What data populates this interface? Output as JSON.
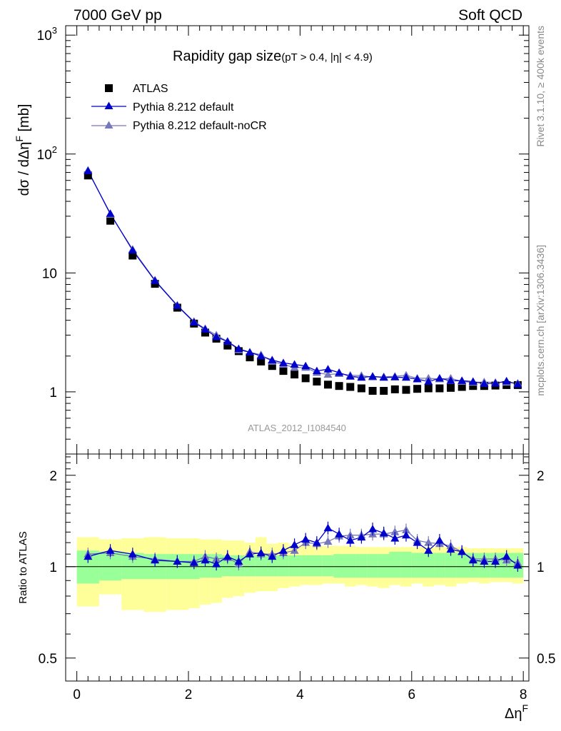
{
  "header": {
    "left": "7000 GeV pp",
    "right": "Soft QCD"
  },
  "side_labels": {
    "rivet": "Rivet 3.1.10, ≥ 400k events",
    "mcplots": "mcplots.cern.ch [arXiv:1306.3436]"
  },
  "analysis_id": "ATLAS_2012_I1084540",
  "colors": {
    "atlas": "#000000",
    "pythia_default": "#0000cc",
    "pythia_nocr": "#7777bb",
    "band_green": "#99ff99",
    "band_yellow": "#ffff99"
  },
  "chart_data": [
    {
      "type": "scatter",
      "panel": "main",
      "title": "Rapidity gap size",
      "subtitle": "(pT > 0.4, |η| < 4.9)",
      "ylabel": "dσ / dΔη^F [mb]",
      "xlabel": "",
      "yscale": "log",
      "xlim": [
        -0.2,
        8.1
      ],
      "ylim": [
        0.3,
        1200
      ],
      "y_ticks": [
        {
          "value": 1,
          "label": "1"
        },
        {
          "value": 10,
          "label": "10"
        },
        {
          "value": 100,
          "label": "10²"
        },
        {
          "value": 1000,
          "label": "10³"
        }
      ],
      "x": [
        0.2,
        0.6,
        1.0,
        1.4,
        1.8,
        2.1,
        2.3,
        2.5,
        2.7,
        2.9,
        3.1,
        3.3,
        3.5,
        3.7,
        3.9,
        4.1,
        4.3,
        4.5,
        4.7,
        4.9,
        5.1,
        5.3,
        5.5,
        5.7,
        5.9,
        6.1,
        6.3,
        6.5,
        6.7,
        6.9,
        7.1,
        7.3,
        7.5,
        7.7,
        7.9
      ],
      "series": [
        {
          "name": "ATLAS",
          "marker": "square",
          "values": [
            66,
            27.5,
            14,
            8.1,
            5.1,
            3.75,
            3.15,
            2.8,
            2.45,
            2.2,
            1.95,
            1.8,
            1.65,
            1.5,
            1.4,
            1.3,
            1.22,
            1.15,
            1.12,
            1.1,
            1.07,
            1.02,
            1.02,
            1.05,
            1.04,
            1.06,
            1.07,
            1.07,
            1.08,
            1.1,
            1.12,
            1.12,
            1.13,
            1.14,
            1.14
          ]
        },
        {
          "name": "Pythia 8.212 default",
          "marker": "triangle",
          "values": [
            72,
            31.5,
            15.5,
            8.6,
            5.3,
            3.85,
            3.35,
            2.9,
            2.65,
            2.3,
            2.15,
            2.0,
            1.85,
            1.75,
            1.7,
            1.65,
            1.5,
            1.55,
            1.45,
            1.35,
            1.32,
            1.35,
            1.32,
            1.33,
            1.32,
            1.28,
            1.22,
            1.3,
            1.24,
            1.24,
            1.22,
            1.17,
            1.18,
            1.23,
            1.16
          ]
        },
        {
          "name": "Pythia 8.212 default-noCR",
          "marker": "triangle",
          "values": [
            73,
            31,
            15.8,
            8.7,
            5.35,
            3.9,
            3.4,
            3.0,
            2.65,
            2.25,
            2.15,
            2.05,
            1.8,
            1.7,
            1.6,
            1.6,
            1.45,
            1.4,
            1.42,
            1.38,
            1.37,
            1.33,
            1.34,
            1.35,
            1.38,
            1.3,
            1.3,
            1.28,
            1.3,
            1.22,
            1.2,
            1.21,
            1.2,
            1.2,
            1.18
          ]
        }
      ]
    },
    {
      "type": "scatter",
      "panel": "ratio",
      "title": "",
      "ylabel": "Ratio to ATLAS",
      "xlabel": "Δη^F",
      "yscale": "log",
      "xlim": [
        -0.2,
        8.1
      ],
      "ylim": [
        0.42,
        2.35
      ],
      "y_ticks": [
        {
          "value": 0.5,
          "label": "0.5"
        },
        {
          "value": 1,
          "label": "1"
        },
        {
          "value": 2,
          "label": "2"
        }
      ],
      "x_ticks": [
        0,
        2,
        4,
        6,
        8
      ],
      "x": [
        0.2,
        0.6,
        1.0,
        1.4,
        1.8,
        2.1,
        2.3,
        2.5,
        2.7,
        2.9,
        3.1,
        3.3,
        3.5,
        3.7,
        3.9,
        4.1,
        4.3,
        4.5,
        4.7,
        4.9,
        5.1,
        5.3,
        5.5,
        5.7,
        5.9,
        6.1,
        6.3,
        6.5,
        6.7,
        6.9,
        7.1,
        7.3,
        7.5,
        7.7,
        7.9
      ],
      "band_edges": [
        0.0,
        0.4,
        0.8,
        1.2,
        1.6,
        2.0,
        2.2,
        2.4,
        2.6,
        2.8,
        3.0,
        3.2,
        3.4,
        3.6,
        3.8,
        4.0,
        4.2,
        4.4,
        4.6,
        4.8,
        5.0,
        5.2,
        5.4,
        5.6,
        5.8,
        6.0,
        6.2,
        6.4,
        6.6,
        6.8,
        7.0,
        7.2,
        7.4,
        7.6,
        7.8,
        8.0
      ],
      "band_green": {
        "low": [
          0.88,
          0.9,
          0.91,
          0.91,
          0.91,
          0.91,
          0.92,
          0.92,
          0.93,
          0.93,
          0.93,
          0.93,
          0.93,
          0.93,
          0.93,
          0.93,
          0.93,
          0.93,
          0.92,
          0.92,
          0.92,
          0.92,
          0.92,
          0.92,
          0.92,
          0.92,
          0.92,
          0.92,
          0.92,
          0.92,
          0.92,
          0.92,
          0.92,
          0.92,
          0.92
        ],
        "high": [
          1.13,
          1.12,
          1.11,
          1.1,
          1.1,
          1.1,
          1.1,
          1.1,
          1.09,
          1.09,
          1.09,
          1.09,
          1.09,
          1.09,
          1.09,
          1.09,
          1.09,
          1.09,
          1.1,
          1.1,
          1.1,
          1.1,
          1.1,
          1.12,
          1.12,
          1.11,
          1.11,
          1.11,
          1.11,
          1.11,
          1.11,
          1.11,
          1.11,
          1.11,
          1.11
        ]
      },
      "band_yellow": {
        "low": [
          0.74,
          0.81,
          0.72,
          0.71,
          0.72,
          0.73,
          0.75,
          0.76,
          0.79,
          0.8,
          0.82,
          0.83,
          0.83,
          0.85,
          0.86,
          0.87,
          0.87,
          0.88,
          0.88,
          0.86,
          0.87,
          0.86,
          0.85,
          0.87,
          0.86,
          0.88,
          0.86,
          0.87,
          0.86,
          0.88,
          0.89,
          0.88,
          0.89,
          0.89,
          0.88
        ],
        "high": [
          1.25,
          1.23,
          1.24,
          1.25,
          1.24,
          1.24,
          1.23,
          1.23,
          1.22,
          1.22,
          1.2,
          1.25,
          1.19,
          1.2,
          1.18,
          1.18,
          1.17,
          1.17,
          1.17,
          1.17,
          1.16,
          1.16,
          1.16,
          1.16,
          1.16,
          1.16,
          1.16,
          1.16,
          1.16,
          1.16,
          1.15,
          1.15,
          1.15,
          1.15,
          1.15
        ]
      },
      "series": [
        {
          "name": "Pythia 8.212 default",
          "values": [
            1.08,
            1.13,
            1.1,
            1.05,
            1.04,
            1.03,
            1.05,
            1.02,
            1.08,
            1.04,
            1.1,
            1.11,
            1.08,
            1.13,
            1.18,
            1.23,
            1.2,
            1.34,
            1.28,
            1.22,
            1.25,
            1.33,
            1.29,
            1.24,
            1.27,
            1.2,
            1.13,
            1.22,
            1.14,
            1.12,
            1.05,
            1.04,
            1.04,
            1.08,
            1.01
          ]
        },
        {
          "name": "Pythia 8.212 default-noCR",
          "values": [
            1.1,
            1.11,
            1.08,
            1.06,
            1.04,
            1.04,
            1.08,
            1.06,
            1.07,
            1.02,
            1.12,
            1.1,
            1.1,
            1.11,
            1.13,
            1.2,
            1.19,
            1.21,
            1.26,
            1.27,
            1.27,
            1.28,
            1.28,
            1.3,
            1.32,
            1.22,
            1.2,
            1.19,
            1.17,
            1.12,
            1.06,
            1.06,
            1.06,
            1.05,
            1.03
          ]
        }
      ]
    }
  ]
}
